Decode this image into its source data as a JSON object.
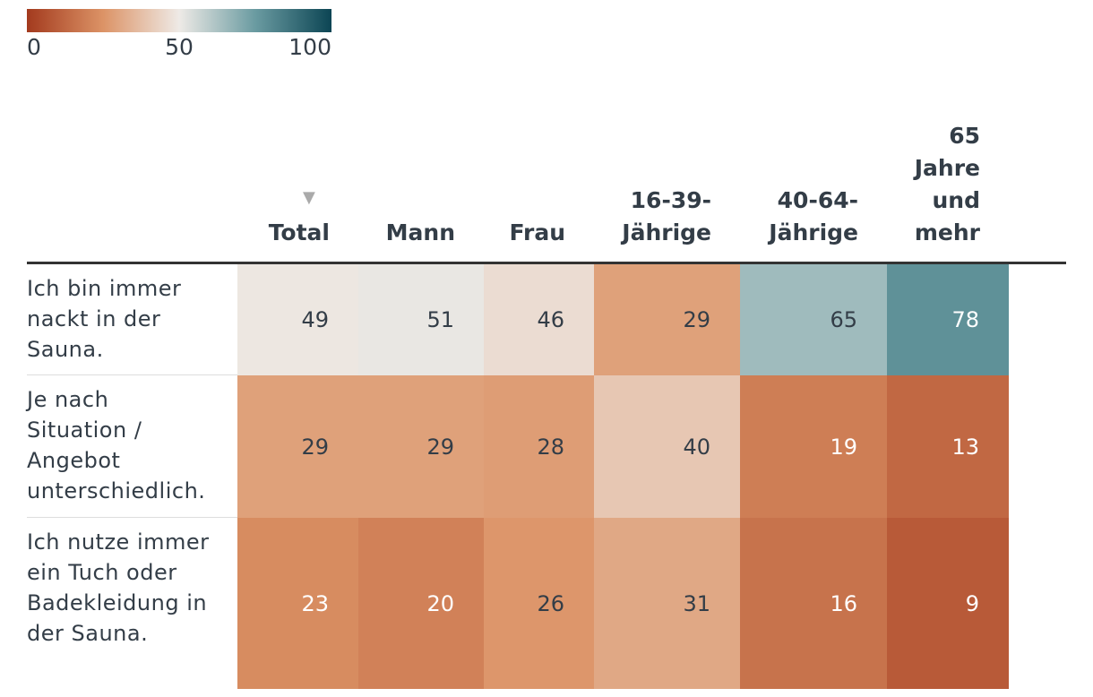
{
  "chart_data": {
    "type": "heatmap",
    "legend": {
      "colors": [
        "#a33a1e",
        "#dc9366",
        "#eeeae6",
        "#6a9ba1",
        "#0c4554"
      ],
      "lim": [
        0,
        100
      ],
      "ticks": [
        0,
        50,
        100
      ]
    },
    "columns": [
      "Total",
      "Mann",
      "Frau",
      "16-39-Jährige",
      "40-64-Jährige",
      "65 Jahre und mehr"
    ],
    "rows": [
      {
        "label": "Ich bin immer nackt in der Sauna.",
        "values": [
          49,
          51,
          46,
          29,
          65,
          78
        ]
      },
      {
        "label": "Je nach Situation / Angebot unterschiedlich.",
        "values": [
          29,
          29,
          28,
          40,
          19,
          13
        ]
      },
      {
        "label": "Ich nutze immer ein Tuch oder Badekleidung in der Sauna.",
        "values": [
          23,
          20,
          26,
          31,
          16,
          9
        ]
      }
    ]
  }
}
